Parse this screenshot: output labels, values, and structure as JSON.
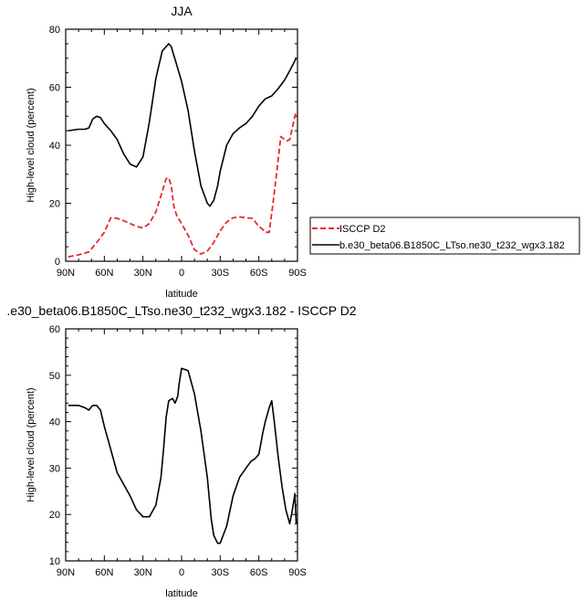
{
  "chart_data": [
    {
      "type": "line",
      "title": "JJA",
      "xlabel": "latitude",
      "ylabel": "High-level cloud (percent)",
      "xlim": [
        90,
        -90
      ],
      "ylim": [
        0,
        80
      ],
      "x_tick_labels": [
        "90N",
        "60N",
        "30N",
        "0",
        "30S",
        "60S",
        "90S"
      ],
      "x_tick_values": [
        90,
        60,
        30,
        0,
        -30,
        -60,
        -90
      ],
      "y_tick_values": [
        0,
        20,
        40,
        60,
        80
      ],
      "legend_placement": "right",
      "series": [
        {
          "name": "ISCCP D2",
          "color": "#e8282a",
          "dash": "dashed",
          "x": [
            88,
            80,
            72,
            65,
            60,
            55,
            50,
            45,
            40,
            35,
            30,
            25,
            20,
            15,
            12,
            10,
            8,
            6,
            4,
            0,
            -5,
            -10,
            -15,
            -20,
            -25,
            -30,
            -35,
            -40,
            -45,
            -50,
            -55,
            -60,
            -63,
            -65,
            -68,
            -71,
            -74,
            -77,
            -80,
            -82,
            -84,
            -86,
            -88,
            -89
          ],
          "y": [
            1.5,
            2.2,
            3.2,
            7,
            10,
            15,
            14.8,
            14,
            13,
            12,
            11.5,
            13,
            17,
            24,
            28.5,
            28.8,
            26,
            19,
            16,
            13,
            9,
            4,
            2.5,
            3.5,
            6.5,
            10.5,
            13.5,
            15,
            15.3,
            15,
            14.8,
            12,
            11,
            10,
            10,
            20,
            31,
            43,
            42,
            41.5,
            42,
            46,
            50,
            51.5
          ]
        },
        {
          "name": "b.e30_beta06.B1850C_LTso.ne30_t232_wgx3.182",
          "color": "#000000",
          "dash": "solid",
          "x": [
            88,
            80,
            75,
            72,
            69,
            66,
            63,
            60,
            55,
            50,
            45,
            40,
            35,
            30,
            25,
            20,
            15,
            10,
            8,
            6,
            4,
            0,
            -5,
            -10,
            -15,
            -20,
            -22,
            -25,
            -28,
            -30,
            -35,
            -40,
            -45,
            -50,
            -55,
            -60,
            -65,
            -70,
            -75,
            -80,
            -85,
            -89
          ],
          "y": [
            45,
            45.5,
            45.5,
            46,
            49,
            50,
            49.5,
            47.5,
            45,
            42,
            37,
            33.5,
            32.5,
            36,
            48,
            63,
            72.5,
            75,
            74,
            71,
            68,
            62,
            52,
            38,
            26,
            20,
            19,
            21,
            26,
            31,
            40,
            44,
            46,
            47.5,
            50,
            53.5,
            56,
            57,
            59.5,
            62.5,
            66.5,
            70
          ]
        }
      ]
    },
    {
      "type": "line",
      "title": ".e30_beta06.B1850C_LTso.ne30_t232_wgx3.182 - ISCCP D2",
      "xlabel": "latitude",
      "ylabel": "High-level cloud (percent)",
      "xlim": [
        90,
        -90
      ],
      "ylim": [
        10,
        60
      ],
      "x_tick_labels": [
        "90N",
        "60N",
        "30N",
        "0",
        "30S",
        "60S",
        "90S"
      ],
      "x_tick_values": [
        90,
        60,
        30,
        0,
        -30,
        -60,
        -90
      ],
      "y_tick_values": [
        10,
        20,
        30,
        40,
        50,
        60
      ],
      "series": [
        {
          "color": "#000000",
          "dash": "solid",
          "x": [
            88,
            85,
            80,
            75,
            72,
            69,
            66,
            63,
            60,
            55,
            50,
            45,
            40,
            35,
            30,
            25,
            20,
            16,
            14,
            12,
            10,
            7,
            5,
            3,
            2,
            0,
            -5,
            -10,
            -15,
            -20,
            -23,
            -25,
            -28,
            -30,
            -35,
            -40,
            -45,
            -50,
            -54,
            -57,
            -60,
            -63,
            -65,
            -68,
            -70,
            -72,
            -75,
            -78,
            -81,
            -84,
            -86,
            -88,
            -89
          ],
          "y": [
            43.5,
            43.5,
            43.5,
            43,
            42.5,
            43.5,
            43.5,
            42.5,
            39,
            34,
            29,
            26.5,
            24,
            21,
            19.5,
            19.5,
            22,
            28,
            34,
            41,
            44.5,
            45,
            44,
            45.5,
            48,
            51.5,
            51,
            46,
            38,
            28,
            19,
            15.5,
            13.8,
            13.8,
            17.5,
            24,
            28,
            30,
            31.5,
            32,
            33,
            37.5,
            40,
            43,
            44.5,
            40,
            32.5,
            26,
            21,
            18,
            21,
            24.5,
            18
          ]
        }
      ]
    }
  ],
  "legend": {
    "entries": [
      "ISCCP D2",
      "b.e30_beta06.B1850C_LTso.ne30_t232_wgx3.182"
    ]
  }
}
